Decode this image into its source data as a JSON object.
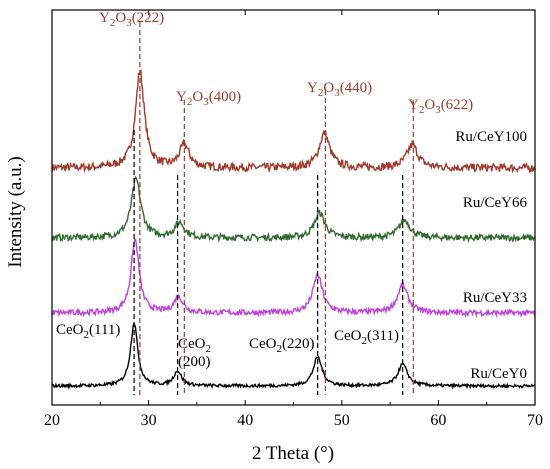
{
  "chart_data": {
    "type": "line",
    "xlabel": "2 Theta (°)",
    "ylabel": "Intensity (a.u.)",
    "xlim": [
      20,
      70
    ],
    "x_ticks": [
      20,
      30,
      40,
      50,
      60,
      70
    ],
    "y_ticks_shown": false,
    "grid": false,
    "colors": {
      "Ru/CeY100": "#a0392a",
      "Ru/CeY66": "#2f6b2f",
      "Ru/CeY33": "#c040e0",
      "Ru/CeY0": "#000000",
      "y2o3_ref": "#a0392a",
      "ceo2_ref": "#000000"
    },
    "series": [
      {
        "name": "Ru/CeY100",
        "baseline": 0.6,
        "noise": 0.01,
        "peaks": [
          {
            "x": 29.1,
            "height": 0.245,
            "width": 0.55
          },
          {
            "x": 33.7,
            "height": 0.058,
            "width": 0.6
          },
          {
            "x": 48.2,
            "height": 0.088,
            "width": 0.65
          },
          {
            "x": 57.3,
            "height": 0.058,
            "width": 0.7
          }
        ]
      },
      {
        "name": "Ru/CeY66",
        "baseline": 0.423,
        "noise": 0.008,
        "peaks": [
          {
            "x": 28.7,
            "height": 0.148,
            "width": 0.6
          },
          {
            "x": 33.2,
            "height": 0.038,
            "width": 0.6
          },
          {
            "x": 47.7,
            "height": 0.063,
            "width": 0.65
          },
          {
            "x": 56.5,
            "height": 0.045,
            "width": 0.7
          }
        ]
      },
      {
        "name": "Ru/CeY33",
        "baseline": 0.233,
        "noise": 0.007,
        "peaks": [
          {
            "x": 28.6,
            "height": 0.185,
            "width": 0.5
          },
          {
            "x": 33.1,
            "height": 0.04,
            "width": 0.55
          },
          {
            "x": 47.5,
            "height": 0.095,
            "width": 0.6
          },
          {
            "x": 56.3,
            "height": 0.07,
            "width": 0.65
          }
        ]
      },
      {
        "name": "Ru/CeY0",
        "baseline": 0.048,
        "noise": 0.004,
        "peaks": [
          {
            "x": 28.5,
            "height": 0.16,
            "width": 0.45
          },
          {
            "x": 33.0,
            "height": 0.037,
            "width": 0.5
          },
          {
            "x": 47.5,
            "height": 0.073,
            "width": 0.55
          },
          {
            "x": 56.3,
            "height": 0.055,
            "width": 0.6
          }
        ]
      }
    ],
    "reference_lines": {
      "Y2O3": [
        {
          "x": 29.1,
          "label_main": "Y",
          "label_sub1": "2",
          "label_mid": "O",
          "label_sub2": "3",
          "label_tail": "(222)"
        },
        {
          "x": 33.7,
          "label_main": "Y",
          "label_sub1": "2",
          "label_mid": "O",
          "label_sub2": "3",
          "label_tail": "(400)"
        },
        {
          "x": 48.3,
          "label_main": "Y",
          "label_sub1": "2",
          "label_mid": "O",
          "label_sub2": "3",
          "label_tail": "(440)"
        },
        {
          "x": 57.4,
          "label_main": "Y",
          "label_sub1": "2",
          "label_mid": "O",
          "label_sub2": "3",
          "label_tail": "(622)"
        }
      ],
      "CeO2": [
        {
          "x": 28.5,
          "label_main": "CeO",
          "label_sub": "2",
          "label_tail": "(111)"
        },
        {
          "x": 33.0,
          "label_main": "CeO",
          "label_sub": "2",
          "label_tail": "(200)"
        },
        {
          "x": 47.5,
          "label_main": "CeO",
          "label_sub": "2",
          "label_tail": "(220)"
        },
        {
          "x": 56.3,
          "label_main": "CeO",
          "label_sub": "2",
          "label_tail": "(311)"
        }
      ]
    }
  }
}
